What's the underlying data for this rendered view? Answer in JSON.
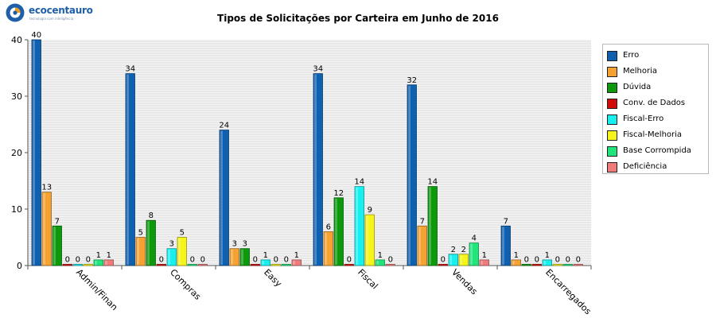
{
  "logo": {
    "brand": "ecocentauro",
    "tagline": "tecnologia com inteligência"
  },
  "chart_data": {
    "type": "bar",
    "title": "Tipos de Solicitações por Carteira em Junho de 2016",
    "xlabel": "",
    "ylabel": "",
    "ylim": [
      0,
      40
    ],
    "yticks": [
      0,
      10,
      20,
      30,
      40
    ],
    "grid": true,
    "legend_position": "right",
    "categories": [
      "Admin/Finan",
      "Compras",
      "Easy",
      "Fiscal",
      "Vendas",
      "Encarregados"
    ],
    "series": [
      {
        "name": "Erro",
        "color": "#1060b0",
        "values": [
          40,
          34,
          24,
          34,
          32,
          7
        ]
      },
      {
        "name": "Melhoria",
        "color": "#f5a233",
        "values": [
          13,
          5,
          3,
          6,
          7,
          1
        ]
      },
      {
        "name": "Dúvida",
        "color": "#0c9a0c",
        "values": [
          7,
          8,
          3,
          12,
          14,
          0
        ]
      },
      {
        "name": "Conv. de Dados",
        "color": "#d40a0a",
        "values": [
          0,
          0,
          0,
          0,
          0,
          0
        ]
      },
      {
        "name": "Fiscal-Erro",
        "color": "#18f0f0",
        "values": [
          0,
          3,
          1,
          14,
          2,
          1
        ]
      },
      {
        "name": "Fiscal-Melhoria",
        "color": "#f5f51a",
        "values": [
          0,
          5,
          0,
          9,
          2,
          0
        ]
      },
      {
        "name": "Base Corrompida",
        "color": "#1fe57a",
        "values": [
          1,
          0,
          0,
          1,
          4,
          0
        ]
      },
      {
        "name": "Deficiência",
        "color": "#ef7b7b",
        "values": [
          1,
          0,
          1,
          0,
          1,
          0
        ]
      }
    ]
  }
}
